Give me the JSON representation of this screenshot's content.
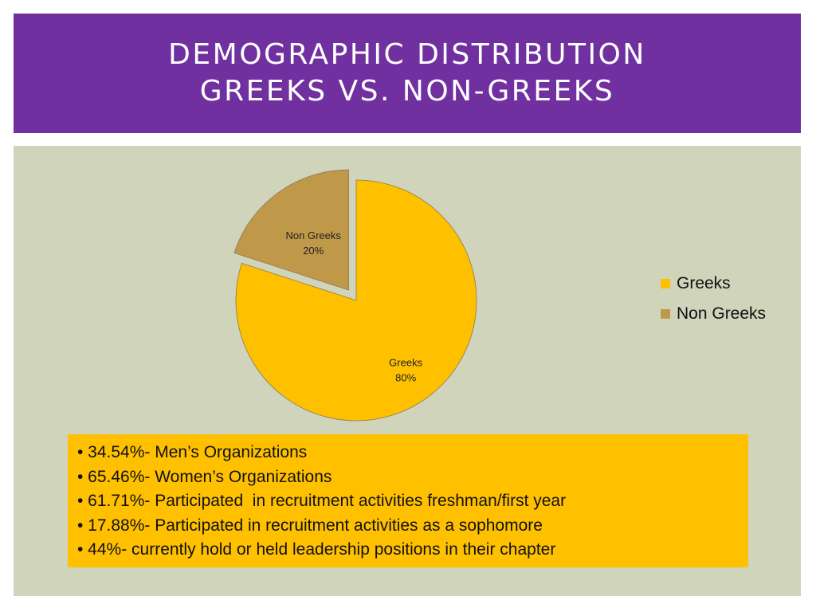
{
  "title": {
    "line1": "DEMOGRAPHIC DISTRIBUTION",
    "line2": "GREEKS VS. NON-GREEKS"
  },
  "colors": {
    "title_bar": "#7030a0",
    "panel": "#cfd4bb",
    "greeks": "#ffc000",
    "non_greeks": "#c0984a",
    "stats_box": "#ffc000"
  },
  "chart_data": {
    "type": "pie",
    "title": "",
    "exploded": "Non Greeks",
    "legend_position": "right",
    "slices": [
      {
        "label": "Greeks",
        "value": 80,
        "display": "80%",
        "color": "#ffc000"
      },
      {
        "label": "Non Greeks",
        "value": 20,
        "display": "20%",
        "color": "#c0984a"
      }
    ]
  },
  "legend": {
    "items": [
      {
        "label": "Greeks",
        "color": "#ffc000"
      },
      {
        "label": "Non Greeks",
        "color": "#c0984a"
      }
    ]
  },
  "stats": {
    "items": [
      "• 34.54%- Men’s Organizations",
      "• 65.46%- Women’s Organizations",
      "• 61.71%- Participated  in recruitment activities freshman/first year",
      "• 17.88%- Participated in recruitment activities as a sophomore",
      "• 44%- currently hold or held leadership positions in their chapter"
    ]
  }
}
